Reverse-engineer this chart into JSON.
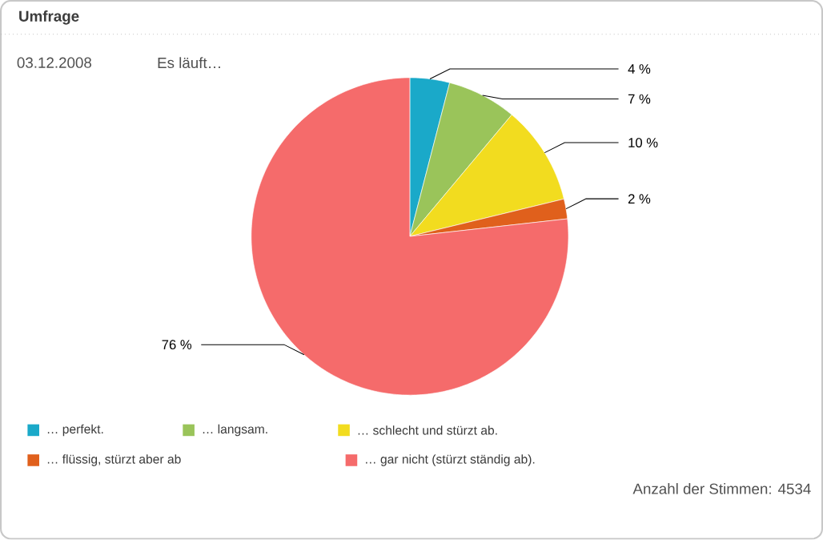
{
  "chart_data": {
    "type": "pie",
    "title": "Umfrage",
    "subtitle": "03.12.2008",
    "annotations": [
      "Es läuft…",
      "Anzahl der Stimmen: 4534"
    ],
    "categories": [
      "… perfekt.",
      "… langsam.",
      "… schlecht und stürzt ab.",
      "… flüssig, stürzt aber ab",
      "… gar nicht (stürzt ständig ab)."
    ],
    "values": [
      4,
      7,
      10,
      2,
      76
    ],
    "value_labels": [
      "4 %",
      "7 %",
      "10 %",
      "2 %",
      "76 %"
    ],
    "colors": [
      "#1aa9c9",
      "#9ac45a",
      "#f2dc1f",
      "#e0601c",
      "#f56b6b"
    ],
    "legend": "bottom"
  }
}
